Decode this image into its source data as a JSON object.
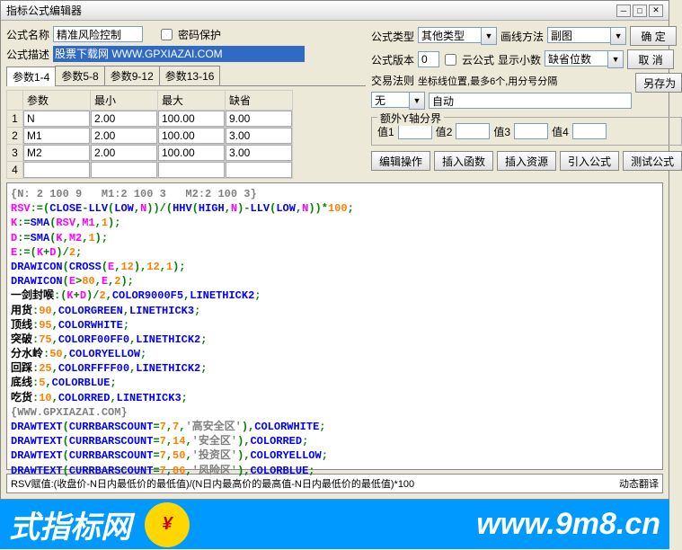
{
  "title": "指标公式编辑器",
  "labels": {
    "formula_name": "公式名称",
    "password_protect": "密码保护",
    "formula_type": "公式类型",
    "draw_method": "画线方法",
    "formula_desc": "公式描述",
    "formula_version": "公式版本",
    "cloud_formula": "云公式",
    "show_decimal": "显示小数",
    "trade_rule": "交易法则",
    "coord_hint": "坐标线位置,最多6个,用分号分隔",
    "extra_y": "额外Y轴分界",
    "v1": "值1",
    "v2": "值2",
    "v3": "值3",
    "v4": "值4"
  },
  "values": {
    "formula_name": "精准风险控制",
    "formula_desc": "股票下载网 WWW.GPXIAZAI.COM",
    "formula_type": "其他类型",
    "draw_method": "副图",
    "version": "0",
    "decimal": "缺省位数",
    "trade_rule": "无",
    "coord": "自动"
  },
  "buttons": {
    "ok": "确  定",
    "cancel": "取  消",
    "saveas": "另存为",
    "edit_op": "编辑操作",
    "insert_fn": "插入函数",
    "insert_res": "插入资源",
    "import_formula": "引入公式",
    "test": "测试公式"
  },
  "param_tabs": [
    "参数1-4",
    "参数5-8",
    "参数9-12",
    "参数13-16"
  ],
  "param_headers": {
    "name": "参数",
    "min": "最小",
    "max": "最大",
    "default": "缺省"
  },
  "params": [
    {
      "name": "N",
      "min": "2.00",
      "max": "100.00",
      "def": "9.00"
    },
    {
      "name": "M1",
      "min": "2.00",
      "max": "100.00",
      "def": "3.00"
    },
    {
      "name": "M2",
      "min": "2.00",
      "max": "100.00",
      "def": "3.00"
    },
    {
      "name": "",
      "min": "",
      "max": "",
      "def": ""
    }
  ],
  "status_left": "RSV赋值:(收盘价-N日内最低价的最低值)/(N日内最高价的最高值-N日内最低价的最低值)*100",
  "status_right": "动态翻译",
  "banner": {
    "left": "式指标网",
    "right": "www.9m8.cn"
  },
  "code": [
    {
      "c": "#808080",
      "t": "{N: 2 100 9   M1:2 100 3   M2:2 100 3}"
    },
    {
      "segs": [
        {
          "c": "#ff00ff",
          "t": "RSV"
        },
        {
          "c": "#008000",
          "t": ":=("
        },
        {
          "c": "#0000ff",
          "t": "CLOSE"
        },
        {
          "c": "#008000",
          "t": "-"
        },
        {
          "c": "#0000ff",
          "t": "LLV"
        },
        {
          "c": "#008000",
          "t": "("
        },
        {
          "c": "#0000ff",
          "t": "LOW"
        },
        {
          "c": "#008000",
          "t": ","
        },
        {
          "c": "#ff00ff",
          "t": "N"
        },
        {
          "c": "#008000",
          "t": "))/("
        },
        {
          "c": "#0000ff",
          "t": "HHV"
        },
        {
          "c": "#008000",
          "t": "("
        },
        {
          "c": "#0000ff",
          "t": "HIGH"
        },
        {
          "c": "#008000",
          "t": ","
        },
        {
          "c": "#ff00ff",
          "t": "N"
        },
        {
          "c": "#008000",
          "t": ")-"
        },
        {
          "c": "#0000ff",
          "t": "LLV"
        },
        {
          "c": "#008000",
          "t": "("
        },
        {
          "c": "#0000ff",
          "t": "LOW"
        },
        {
          "c": "#008000",
          "t": ","
        },
        {
          "c": "#ff00ff",
          "t": "N"
        },
        {
          "c": "#008000",
          "t": "))*"
        },
        {
          "c": "#ff8000",
          "t": "100"
        },
        {
          "c": "#008000",
          "t": ";"
        }
      ]
    },
    {
      "segs": [
        {
          "c": "#ff00ff",
          "t": "K"
        },
        {
          "c": "#008000",
          "t": ":="
        },
        {
          "c": "#0000ff",
          "t": "SMA"
        },
        {
          "c": "#008000",
          "t": "("
        },
        {
          "c": "#ff00ff",
          "t": "RSV"
        },
        {
          "c": "#008000",
          "t": ","
        },
        {
          "c": "#ff00ff",
          "t": "M1"
        },
        {
          "c": "#008000",
          "t": ","
        },
        {
          "c": "#ff8000",
          "t": "1"
        },
        {
          "c": "#008000",
          "t": ");"
        }
      ]
    },
    {
      "segs": [
        {
          "c": "#ff00ff",
          "t": "D"
        },
        {
          "c": "#008000",
          "t": ":="
        },
        {
          "c": "#0000ff",
          "t": "SMA"
        },
        {
          "c": "#008000",
          "t": "("
        },
        {
          "c": "#ff00ff",
          "t": "K"
        },
        {
          "c": "#008000",
          "t": ","
        },
        {
          "c": "#ff00ff",
          "t": "M2"
        },
        {
          "c": "#008000",
          "t": ","
        },
        {
          "c": "#ff8000",
          "t": "1"
        },
        {
          "c": "#008000",
          "t": ");"
        }
      ]
    },
    {
      "segs": [
        {
          "c": "#ff00ff",
          "t": "E"
        },
        {
          "c": "#008000",
          "t": ":=("
        },
        {
          "c": "#ff00ff",
          "t": "K"
        },
        {
          "c": "#008000",
          "t": "+"
        },
        {
          "c": "#ff00ff",
          "t": "D"
        },
        {
          "c": "#008000",
          "t": ")/"
        },
        {
          "c": "#ff8000",
          "t": "2"
        },
        {
          "c": "#008000",
          "t": ";"
        }
      ]
    },
    {
      "segs": [
        {
          "c": "#0000ff",
          "t": "DRAWICON"
        },
        {
          "c": "#008000",
          "t": "("
        },
        {
          "c": "#0000ff",
          "t": "CROSS"
        },
        {
          "c": "#008000",
          "t": "("
        },
        {
          "c": "#ff00ff",
          "t": "E"
        },
        {
          "c": "#008000",
          "t": ","
        },
        {
          "c": "#ff8000",
          "t": "12"
        },
        {
          "c": "#008000",
          "t": "),"
        },
        {
          "c": "#ff8000",
          "t": "12"
        },
        {
          "c": "#008000",
          "t": ","
        },
        {
          "c": "#ff8000",
          "t": "1"
        },
        {
          "c": "#008000",
          "t": ");"
        }
      ]
    },
    {
      "segs": [
        {
          "c": "#0000ff",
          "t": "DRAWICON"
        },
        {
          "c": "#008000",
          "t": "("
        },
        {
          "c": "#ff00ff",
          "t": "E"
        },
        {
          "c": "#008000",
          "t": ">"
        },
        {
          "c": "#ff8000",
          "t": "80"
        },
        {
          "c": "#008000",
          "t": ","
        },
        {
          "c": "#ff00ff",
          "t": "E"
        },
        {
          "c": "#008000",
          "t": ","
        },
        {
          "c": "#ff8000",
          "t": "2"
        },
        {
          "c": "#008000",
          "t": ");"
        }
      ]
    },
    {
      "segs": [
        {
          "c": "#000000",
          "t": "一剑封喉"
        },
        {
          "c": "#008000",
          "t": ":("
        },
        {
          "c": "#ff00ff",
          "t": "K"
        },
        {
          "c": "#008000",
          "t": "+"
        },
        {
          "c": "#ff00ff",
          "t": "D"
        },
        {
          "c": "#008000",
          "t": ")/"
        },
        {
          "c": "#ff8000",
          "t": "2"
        },
        {
          "c": "#008000",
          "t": ","
        },
        {
          "c": "#0000ff",
          "t": "COLOR9000F5"
        },
        {
          "c": "#008000",
          "t": ","
        },
        {
          "c": "#0000ff",
          "t": "LINETHICK2"
        },
        {
          "c": "#008000",
          "t": ";"
        }
      ]
    },
    {
      "segs": [
        {
          "c": "#000000",
          "t": "用货"
        },
        {
          "c": "#008000",
          "t": ":"
        },
        {
          "c": "#ff8000",
          "t": "90"
        },
        {
          "c": "#008000",
          "t": ","
        },
        {
          "c": "#0000ff",
          "t": "COLORGREEN"
        },
        {
          "c": "#008000",
          "t": ","
        },
        {
          "c": "#0000ff",
          "t": "LINETHICK3"
        },
        {
          "c": "#008000",
          "t": ";"
        }
      ]
    },
    {
      "segs": [
        {
          "c": "#000000",
          "t": "顶线"
        },
        {
          "c": "#008000",
          "t": ":"
        },
        {
          "c": "#ff8000",
          "t": "95"
        },
        {
          "c": "#008000",
          "t": ","
        },
        {
          "c": "#0000ff",
          "t": "COLORWHITE"
        },
        {
          "c": "#008000",
          "t": ";"
        }
      ]
    },
    {
      "segs": [
        {
          "c": "#000000",
          "t": "突破"
        },
        {
          "c": "#008000",
          "t": ":"
        },
        {
          "c": "#ff8000",
          "t": "75"
        },
        {
          "c": "#008000",
          "t": ","
        },
        {
          "c": "#0000ff",
          "t": "COLORF00FF0"
        },
        {
          "c": "#008000",
          "t": ","
        },
        {
          "c": "#0000ff",
          "t": "LINETHICK2"
        },
        {
          "c": "#008000",
          "t": ";"
        }
      ]
    },
    {
      "segs": [
        {
          "c": "#000000",
          "t": "分水岭"
        },
        {
          "c": "#008000",
          "t": ":"
        },
        {
          "c": "#ff8000",
          "t": "50"
        },
        {
          "c": "#008000",
          "t": ","
        },
        {
          "c": "#0000ff",
          "t": "COLORYELLOW"
        },
        {
          "c": "#008000",
          "t": ";"
        }
      ]
    },
    {
      "segs": [
        {
          "c": "#000000",
          "t": "回踩"
        },
        {
          "c": "#008000",
          "t": ":"
        },
        {
          "c": "#ff8000",
          "t": "25"
        },
        {
          "c": "#008000",
          "t": ","
        },
        {
          "c": "#0000ff",
          "t": "COLORFFFF00"
        },
        {
          "c": "#008000",
          "t": ","
        },
        {
          "c": "#0000ff",
          "t": "LINETHICK2"
        },
        {
          "c": "#008000",
          "t": ";"
        }
      ]
    },
    {
      "segs": [
        {
          "c": "#000000",
          "t": "底线"
        },
        {
          "c": "#008000",
          "t": ":"
        },
        {
          "c": "#ff8000",
          "t": "5"
        },
        {
          "c": "#008000",
          "t": ","
        },
        {
          "c": "#0000ff",
          "t": "COLORBLUE"
        },
        {
          "c": "#008000",
          "t": ";"
        }
      ]
    },
    {
      "segs": [
        {
          "c": "#000000",
          "t": "吃货"
        },
        {
          "c": "#008000",
          "t": ":"
        },
        {
          "c": "#ff8000",
          "t": "10"
        },
        {
          "c": "#008000",
          "t": ","
        },
        {
          "c": "#0000ff",
          "t": "COLORRED"
        },
        {
          "c": "#008000",
          "t": ","
        },
        {
          "c": "#0000ff",
          "t": "LINETHICK3"
        },
        {
          "c": "#008000",
          "t": ";"
        }
      ]
    },
    {
      "c": "#808080",
      "t": "{WWW.GPXIAZAI.COM}"
    },
    {
      "segs": [
        {
          "c": "#0000ff",
          "t": "DRAWTEXT"
        },
        {
          "c": "#008000",
          "t": "("
        },
        {
          "c": "#0000ff",
          "t": "CURRBARSCOUNT"
        },
        {
          "c": "#008000",
          "t": "="
        },
        {
          "c": "#ff8000",
          "t": "7"
        },
        {
          "c": "#008000",
          "t": ","
        },
        {
          "c": "#ff8000",
          "t": "7"
        },
        {
          "c": "#008000",
          "t": ","
        },
        {
          "c": "#808080",
          "t": "'高安全区'"
        },
        {
          "c": "#008000",
          "t": "),"
        },
        {
          "c": "#0000ff",
          "t": "COLORWHITE"
        },
        {
          "c": "#008000",
          "t": ";"
        }
      ]
    },
    {
      "segs": [
        {
          "c": "#0000ff",
          "t": "DRAWTEXT"
        },
        {
          "c": "#008000",
          "t": "("
        },
        {
          "c": "#0000ff",
          "t": "CURRBARSCOUNT"
        },
        {
          "c": "#008000",
          "t": "="
        },
        {
          "c": "#ff8000",
          "t": "7"
        },
        {
          "c": "#008000",
          "t": ","
        },
        {
          "c": "#ff8000",
          "t": "14"
        },
        {
          "c": "#008000",
          "t": ","
        },
        {
          "c": "#808080",
          "t": "'安全区'"
        },
        {
          "c": "#008000",
          "t": "),"
        },
        {
          "c": "#0000ff",
          "t": "COLORRED"
        },
        {
          "c": "#008000",
          "t": ";"
        }
      ]
    },
    {
      "segs": [
        {
          "c": "#0000ff",
          "t": "DRAWTEXT"
        },
        {
          "c": "#008000",
          "t": "("
        },
        {
          "c": "#0000ff",
          "t": "CURRBARSCOUNT"
        },
        {
          "c": "#008000",
          "t": "="
        },
        {
          "c": "#ff8000",
          "t": "7"
        },
        {
          "c": "#008000",
          "t": ","
        },
        {
          "c": "#ff8000",
          "t": "50"
        },
        {
          "c": "#008000",
          "t": ","
        },
        {
          "c": "#808080",
          "t": "'投资区'"
        },
        {
          "c": "#008000",
          "t": "),"
        },
        {
          "c": "#0000ff",
          "t": "COLORYELLOW"
        },
        {
          "c": "#008000",
          "t": ";"
        }
      ]
    },
    {
      "segs": [
        {
          "c": "#0000ff",
          "t": "DRAWTEXT"
        },
        {
          "c": "#008000",
          "t": "("
        },
        {
          "c": "#0000ff",
          "t": "CURRBARSCOUNT"
        },
        {
          "c": "#008000",
          "t": "="
        },
        {
          "c": "#ff8000",
          "t": "7"
        },
        {
          "c": "#008000",
          "t": ","
        },
        {
          "c": "#ff8000",
          "t": "86"
        },
        {
          "c": "#008000",
          "t": ","
        },
        {
          "c": "#808080",
          "t": "'风险区'"
        },
        {
          "c": "#008000",
          "t": "),"
        },
        {
          "c": "#0000ff",
          "t": "COLORBLUE"
        },
        {
          "c": "#008000",
          "t": ";"
        }
      ]
    }
  ]
}
